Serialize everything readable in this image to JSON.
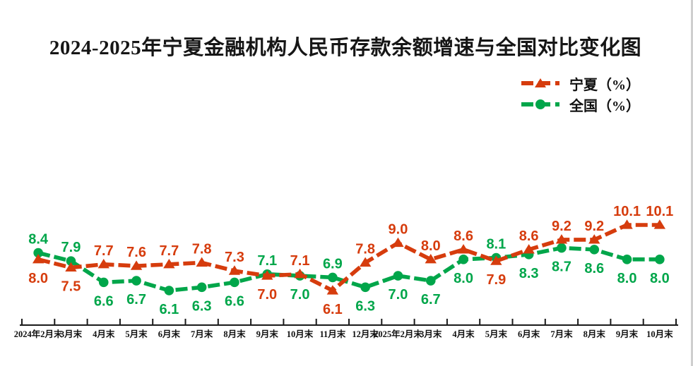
{
  "title": "2024-2025年宁夏金融机构人民币存款余额增速与全国对比变化图",
  "legend": {
    "items": [
      {
        "label": "宁夏（%）"
      },
      {
        "label": "全国（%）"
      }
    ]
  },
  "colors": {
    "ningxia": "#d63c0d",
    "national": "#00a64a",
    "axis": "#1a1a1a",
    "title_text": "#161616"
  },
  "chart_data": {
    "type": "line",
    "title": "2024-2025年宁夏金融机构人民币存款余额增速与全国对比变化图",
    "categories": [
      "2024年2月末",
      "3月末",
      "4月末",
      "5月末",
      "6月末",
      "7月末",
      "8月末",
      "9月末",
      "10月末",
      "11月末",
      "12月末",
      "2025年2月末",
      "3月末",
      "4月末",
      "5月末",
      "6月末",
      "7月末",
      "8月末",
      "9月末",
      "10月末"
    ],
    "series": [
      {
        "name": "宁夏（%）",
        "color": "#d63c0d",
        "marker": "triangle",
        "values": [
          8.0,
          7.5,
          7.7,
          7.6,
          7.7,
          7.8,
          7.3,
          7.0,
          7.1,
          6.1,
          7.8,
          9.0,
          8.0,
          8.6,
          7.9,
          8.6,
          9.2,
          9.2,
          10.1,
          10.1
        ]
      },
      {
        "name": "全国（%）",
        "color": "#00a64a",
        "marker": "circle",
        "values": [
          8.4,
          7.9,
          6.6,
          6.7,
          6.1,
          6.3,
          6.6,
          7.1,
          7.0,
          6.9,
          6.3,
          7.0,
          6.7,
          8.0,
          8.1,
          8.3,
          8.7,
          8.6,
          8.0,
          8.0
        ]
      }
    ],
    "xlabel": "",
    "ylabel": "",
    "ylim": [
      5.5,
      11
    ],
    "grid": false,
    "y_axis_shown": false,
    "legend_position": "top-right",
    "data_labels": true
  }
}
